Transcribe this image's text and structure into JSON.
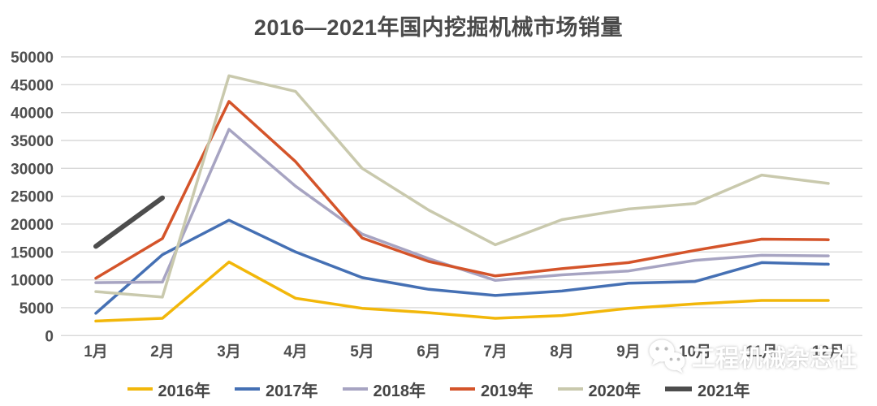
{
  "title": "2016—2021年国内挖掘机械市场销量",
  "watermark": {
    "icon": "wechat-icon",
    "text": "工程机械杂志社",
    "color": "#ffffff"
  },
  "colors": {
    "background": "#ffffff",
    "gridline": "#d9d9d9",
    "axis_text": "#4f4f4f",
    "title_text": "#4a4a4a",
    "legend_text": "#454545"
  },
  "chart_data": {
    "type": "line",
    "title": "2016—2021年国内挖掘机械市场销量",
    "categories": [
      "1月",
      "2月",
      "3月",
      "4月",
      "5月",
      "6月",
      "7月",
      "8月",
      "9月",
      "10月",
      "11月",
      "12月"
    ],
    "series": [
      {
        "name": "2016年",
        "color": "#f2b70a",
        "thick": false,
        "values": [
          2600,
          3100,
          13200,
          6700,
          4900,
          4100,
          3100,
          3600,
          4900,
          5700,
          6300,
          6300
        ]
      },
      {
        "name": "2017年",
        "color": "#4570b4",
        "thick": false,
        "values": [
          4000,
          14500,
          20700,
          15000,
          10400,
          8300,
          7200,
          8000,
          9400,
          9700,
          13100,
          12800
        ]
      },
      {
        "name": "2018年",
        "color": "#a7a4c2",
        "thick": false,
        "values": [
          9500,
          9600,
          37000,
          26800,
          18200,
          13800,
          9900,
          10900,
          11600,
          13500,
          14400,
          14300
        ]
      },
      {
        "name": "2019年",
        "color": "#d4542a",
        "thick": false,
        "values": [
          10300,
          17400,
          42000,
          31200,
          17500,
          13300,
          10700,
          12000,
          13100,
          15300,
          17300,
          17200
        ]
      },
      {
        "name": "2020年",
        "color": "#c9c9ad",
        "thick": false,
        "values": [
          7900,
          6900,
          46600,
          43800,
          30000,
          22500,
          16300,
          20800,
          22700,
          23700,
          28800,
          27300
        ]
      },
      {
        "name": "2021年",
        "color": "#4d4d4d",
        "thick": true,
        "values": [
          16000,
          24700
        ]
      }
    ],
    "xlabel": "",
    "ylabel": "",
    "ylim": [
      0,
      50000
    ],
    "ytick_step": 5000,
    "ytick_labels": [
      "0",
      "5000",
      "10000",
      "15000",
      "20000",
      "25000",
      "30000",
      "35000",
      "40000",
      "45000",
      "50000"
    ],
    "grid": true,
    "legend_position": "bottom"
  }
}
